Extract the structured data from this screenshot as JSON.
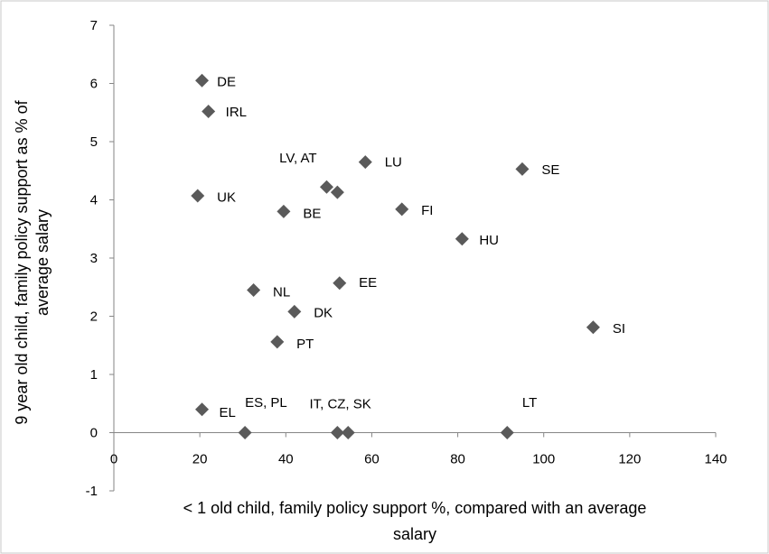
{
  "chart_data": {
    "type": "scatter",
    "title": "",
    "xlabel_lines": [
      "< 1 old child, family policy support %, compared with an average",
      "salary"
    ],
    "ylabel_lines": [
      "9 year old child, family policy support as % of",
      "average salary"
    ],
    "xlim": [
      0,
      140
    ],
    "ylim": [
      -1,
      7
    ],
    "xticks": [
      0,
      20,
      40,
      60,
      80,
      100,
      120,
      140
    ],
    "yticks": [
      -1,
      0,
      1,
      2,
      3,
      4,
      5,
      6,
      7
    ],
    "grid": false,
    "legend": "none",
    "marker_color": "#5a5a5a",
    "points": [
      {
        "x": 20.5,
        "y": 6.05
      },
      {
        "x": 22.0,
        "y": 5.52
      },
      {
        "x": 19.5,
        "y": 4.07
      },
      {
        "x": 39.5,
        "y": 3.8
      },
      {
        "x": 49.5,
        "y": 4.22
      },
      {
        "x": 52.0,
        "y": 4.13
      },
      {
        "x": 58.5,
        "y": 4.65
      },
      {
        "x": 67.0,
        "y": 3.84
      },
      {
        "x": 95.0,
        "y": 4.53
      },
      {
        "x": 81.0,
        "y": 3.33
      },
      {
        "x": 32.5,
        "y": 2.45
      },
      {
        "x": 52.5,
        "y": 2.57
      },
      {
        "x": 42.0,
        "y": 2.08
      },
      {
        "x": 38.0,
        "y": 1.56
      },
      {
        "x": 111.5,
        "y": 1.81
      },
      {
        "x": 20.5,
        "y": 0.4
      },
      {
        "x": 30.5,
        "y": 0.0
      },
      {
        "x": 52.0,
        "y": 0.0
      },
      {
        "x": 54.5,
        "y": 0.0
      },
      {
        "x": 91.5,
        "y": 0.0
      }
    ],
    "labels": [
      {
        "text": "DE",
        "x": 24.0,
        "y": 6.03
      },
      {
        "text": "IRL",
        "x": 26.0,
        "y": 5.51
      },
      {
        "text": "UK",
        "x": 24.0,
        "y": 4.05
      },
      {
        "text": "BE",
        "x": 44.0,
        "y": 3.77
      },
      {
        "text": "LV, AT",
        "x": 38.5,
        "y": 4.72
      },
      {
        "text": "LU",
        "x": 63.0,
        "y": 4.65
      },
      {
        "text": "FI",
        "x": 71.5,
        "y": 3.82
      },
      {
        "text": "SE",
        "x": 99.5,
        "y": 4.52
      },
      {
        "text": "HU",
        "x": 85.0,
        "y": 3.31
      },
      {
        "text": "NL",
        "x": 37.0,
        "y": 2.42
      },
      {
        "text": "EE",
        "x": 57.0,
        "y": 2.58
      },
      {
        "text": "DK",
        "x": 46.5,
        "y": 2.06
      },
      {
        "text": "PT",
        "x": 42.5,
        "y": 1.53
      },
      {
        "text": "SI",
        "x": 116.0,
        "y": 1.79
      },
      {
        "text": "EL",
        "x": 24.5,
        "y": 0.35
      },
      {
        "text": "ES, PL",
        "x": 30.5,
        "y": 0.52
      },
      {
        "text": "IT, CZ, SK",
        "x": 45.5,
        "y": 0.5
      },
      {
        "text": "LT",
        "x": 95.0,
        "y": 0.52
      }
    ]
  }
}
